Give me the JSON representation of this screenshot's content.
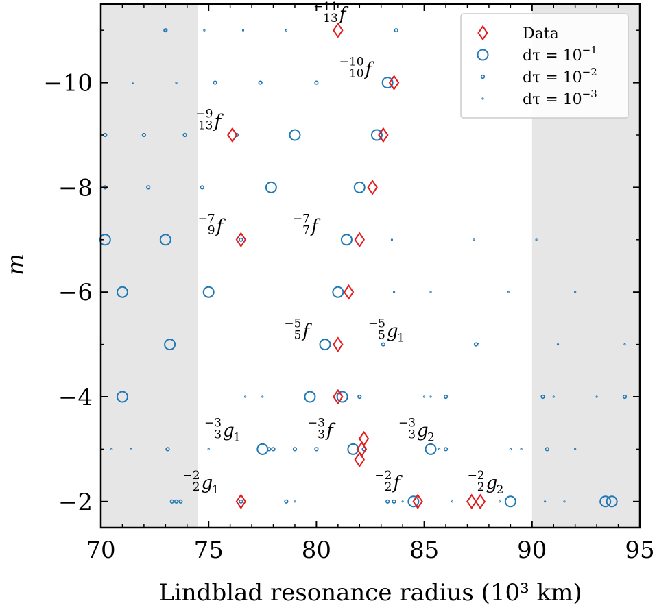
{
  "chart_data": {
    "type": "scatter",
    "xlabel": "Lindblad resonance radius (10³ km)",
    "ylabel": "m",
    "xlim": [
      70,
      95
    ],
    "ylim": [
      -1.5,
      -11.5
    ],
    "x_ticks": [
      70,
      75,
      80,
      85,
      90,
      95
    ],
    "y_ticks": [
      -2,
      -4,
      -6,
      -8,
      -10
    ],
    "y_tick_labels": [
      "−2",
      "−4",
      "−6",
      "−8",
      "−10"
    ],
    "shaded_regions": [
      [
        70,
        74.5
      ],
      [
        90,
        95
      ]
    ],
    "legend_position": "top-right",
    "grid": false,
    "colors": {
      "data": "#e41a1c",
      "model": "#1f77b4",
      "shade": "#e6e6e6"
    },
    "series": [
      {
        "name": "Data",
        "marker": "diamond",
        "points": [
          [
            81.0,
            -11
          ],
          [
            83.6,
            -10
          ],
          [
            76.1,
            -9
          ],
          [
            83.1,
            -9
          ],
          [
            82.6,
            -8
          ],
          [
            76.5,
            -7
          ],
          [
            82.0,
            -7
          ],
          [
            81.5,
            -6
          ],
          [
            81.0,
            -5
          ],
          [
            81.0,
            -4
          ],
          [
            82.2,
            -3.2
          ],
          [
            82.1,
            -3.0
          ],
          [
            82.0,
            -2.8
          ],
          [
            76.5,
            -2
          ],
          [
            84.7,
            -2
          ],
          [
            87.2,
            -2
          ],
          [
            87.6,
            -2
          ]
        ]
      },
      {
        "name": "dτ = 10⁻¹",
        "legend_parts": {
          "pre": "dτ = 10",
          "sup": "−1"
        },
        "marker": "circle-large",
        "points": [
          [
            70.2,
            -7
          ],
          [
            71.0,
            -6
          ],
          [
            75.0,
            -6
          ],
          [
            81.0,
            -6
          ],
          [
            73.2,
            -5
          ],
          [
            80.4,
            -5
          ],
          [
            71.0,
            -4
          ],
          [
            79.7,
            -4
          ],
          [
            81.2,
            -4
          ],
          [
            81.4,
            -7
          ],
          [
            77.5,
            -3
          ],
          [
            81.7,
            -3
          ],
          [
            85.3,
            -3
          ],
          [
            84.5,
            -2
          ],
          [
            89.0,
            -2
          ],
          [
            93.4,
            -2
          ],
          [
            93.7,
            -2
          ],
          [
            83.3,
            -10
          ],
          [
            82.8,
            -9
          ],
          [
            82.0,
            -8
          ],
          [
            77.9,
            -8
          ],
          [
            79.0,
            -9
          ],
          [
            73.0,
            -7
          ]
        ]
      },
      {
        "name": "dτ = 10⁻²",
        "legend_parts": {
          "pre": "dτ = 10",
          "sup": "−2"
        },
        "marker": "circle-small",
        "points": [
          [
            83.7,
            -11
          ],
          [
            73.0,
            -11
          ],
          [
            75.3,
            -10
          ],
          [
            77.4,
            -10
          ],
          [
            80.0,
            -10
          ],
          [
            70.2,
            -9
          ],
          [
            72.0,
            -9
          ],
          [
            73.9,
            -9
          ],
          [
            76.3,
            -9
          ],
          [
            70.2,
            -8
          ],
          [
            72.2,
            -8
          ],
          [
            74.7,
            -8
          ],
          [
            76.5,
            -7
          ],
          [
            83.1,
            -5
          ],
          [
            87.4,
            -5
          ],
          [
            86.0,
            -4
          ],
          [
            90.5,
            -4
          ],
          [
            94.3,
            -4
          ],
          [
            79.0,
            -3
          ],
          [
            77.8,
            -3
          ],
          [
            80.0,
            -3
          ],
          [
            82.2,
            -3
          ],
          [
            86.0,
            -3
          ],
          [
            90.7,
            -3
          ],
          [
            73.1,
            -3
          ],
          [
            73.3,
            -2
          ],
          [
            73.5,
            -2
          ],
          [
            73.7,
            -2
          ],
          [
            78.6,
            -2
          ],
          [
            83.3,
            -2
          ],
          [
            83.6,
            -2
          ],
          [
            76.5,
            -2
          ],
          [
            78.0,
            -3
          ],
          [
            82.0,
            -4
          ]
        ]
      },
      {
        "name": "dτ = 10⁻³",
        "legend_parts": {
          "pre": "dτ = 10",
          "sup": "−3"
        },
        "marker": "circle-tiny",
        "points": [
          [
            73.0,
            -11
          ],
          [
            74.8,
            -11
          ],
          [
            76.6,
            -11
          ],
          [
            78.6,
            -11
          ],
          [
            71.5,
            -10
          ],
          [
            73.5,
            -10
          ],
          [
            87.3,
            -7
          ],
          [
            90.2,
            -7
          ],
          [
            83.6,
            -6
          ],
          [
            85.3,
            -6
          ],
          [
            88.9,
            -6
          ],
          [
            92.0,
            -6
          ],
          [
            91.2,
            -5
          ],
          [
            94.3,
            -5
          ],
          [
            87.5,
            -5
          ],
          [
            85.0,
            -4
          ],
          [
            85.3,
            -4
          ],
          [
            91.0,
            -4
          ],
          [
            93.0,
            -4
          ],
          [
            76.7,
            -4
          ],
          [
            77.5,
            -4
          ],
          [
            70.5,
            -3
          ],
          [
            71.4,
            -3
          ],
          [
            75.0,
            -3
          ],
          [
            85.7,
            -3
          ],
          [
            89.0,
            -3
          ],
          [
            89.5,
            -3
          ],
          [
            92.0,
            -3
          ],
          [
            84.0,
            -2
          ],
          [
            86.3,
            -2
          ],
          [
            88.5,
            -2
          ],
          [
            90.6,
            -2
          ],
          [
            91.5,
            -2
          ],
          [
            79.0,
            -2
          ],
          [
            83.5,
            -7
          ]
        ]
      }
    ],
    "annotations": [
      {
        "upper": "−11",
        "lower": "13",
        "base": "f",
        "x": 81.0,
        "y": -11.25
      },
      {
        "upper": "−10",
        "lower": "10",
        "base": "f",
        "x": 82.2,
        "y": -10.2
      },
      {
        "upper": "−9",
        "lower": "13",
        "base": "f",
        "x": 75.2,
        "y": -9.2
      },
      {
        "upper": "−7",
        "lower": "9",
        "base": "f",
        "x": 75.3,
        "y": -7.2
      },
      {
        "upper": "−7",
        "lower": "7",
        "base": "f",
        "x": 79.7,
        "y": -7.2
      },
      {
        "upper": "−5",
        "lower": "5",
        "base": "f",
        "x": 79.3,
        "y": -5.2
      },
      {
        "upper": "−5",
        "lower": "5",
        "base": "g",
        "sub": "1",
        "x": 83.2,
        "y": -5.2
      },
      {
        "upper": "−3",
        "lower": "3",
        "base": "g",
        "sub": "1",
        "x": 75.6,
        "y": -3.3
      },
      {
        "upper": "−3",
        "lower": "3",
        "base": "f",
        "x": 80.4,
        "y": -3.3
      },
      {
        "upper": "−3",
        "lower": "3",
        "base": "g",
        "sub": "2",
        "x": 84.6,
        "y": -3.3
      },
      {
        "upper": "−2",
        "lower": "2",
        "base": "g",
        "sub": "1",
        "x": 74.6,
        "y": -2.3
      },
      {
        "upper": "−2",
        "lower": "2",
        "base": "f",
        "x": 83.5,
        "y": -2.3
      },
      {
        "upper": "−2",
        "lower": "2",
        "base": "g",
        "sub": "2",
        "x": 87.8,
        "y": -2.3
      }
    ]
  }
}
